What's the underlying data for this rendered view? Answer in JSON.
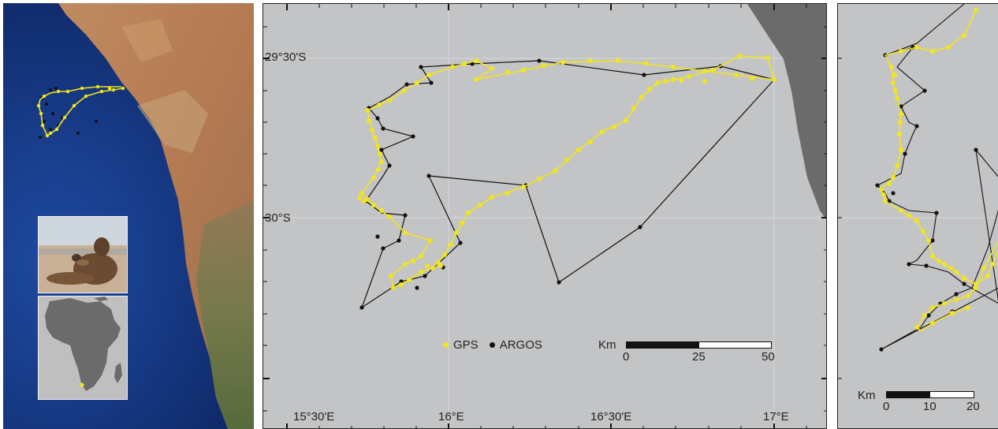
{
  "main_map": {
    "lat_labels": [
      "29°30'S",
      "30°S"
    ],
    "lon_labels": [
      "15°30'E",
      "16°E",
      "16°30'E",
      "17°E"
    ],
    "legend": {
      "gps_label": "GPS",
      "argos_label": "ARGOS"
    },
    "scale": {
      "unit": "Km",
      "ticks": [
        "0",
        "25",
        "50"
      ]
    }
  },
  "right_map": {
    "scale": {
      "unit": "Km",
      "ticks": [
        "0",
        "10",
        "20"
      ]
    }
  },
  "colors": {
    "sea": "#c3c4c6",
    "land": "#6b6b6b",
    "gps_track": "#f2e51b",
    "argos_track": "#111111",
    "ocean_satellite": "#173a86",
    "desert": "#b9805a"
  }
}
